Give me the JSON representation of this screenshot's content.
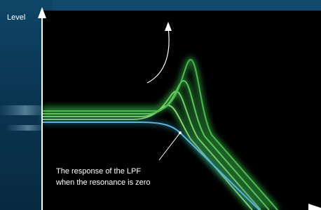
{
  "axis": {
    "y_label": "Level"
  },
  "annotation": {
    "lines": [
      "The response of the LPF",
      "when the resonance is zero"
    ]
  }
}
